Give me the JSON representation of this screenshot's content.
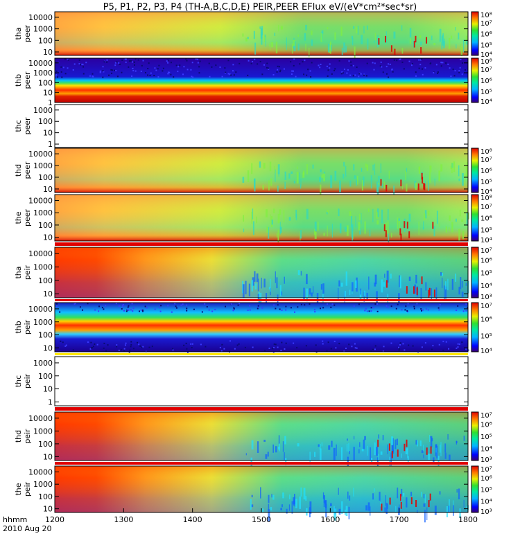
{
  "chart_data": {
    "type": "heatmap",
    "title": "P5, P1, P2, P3, P4 (TH-A,B,C,D,E) PEIR,PEER EFlux eV/(eV*cm²*sec*sr)",
    "x_axis": {
      "label_top": "hhmm",
      "label_bottom": "2010 Aug 20",
      "ticks": [
        "1200",
        "1300",
        "1400",
        "1500",
        "1600",
        "1700",
        "1800"
      ],
      "range": [
        "1200",
        "1800"
      ]
    },
    "panels": [
      {
        "probe": "tha",
        "kind": "peer",
        "yticks": [
          "10",
          "100",
          "1000",
          "10000"
        ],
        "ylim": [
          5,
          30000
        ],
        "yscale": "log",
        "data": true,
        "colorbar": {
          "ticks": [
            "10⁴",
            "10⁵",
            "10⁶",
            "10⁷",
            "10⁸"
          ],
          "range": [
            10000,
            100000000
          ]
        },
        "description_values": {
          "dominant_low_energy_level": "10⁷–10⁸",
          "background_level": "10⁶"
        }
      },
      {
        "probe": "thb",
        "kind": "peer",
        "yticks": [
          "1",
          "10",
          "100",
          "1000",
          "10000"
        ],
        "ylim": [
          1,
          30000
        ],
        "yscale": "log",
        "data": true,
        "colorbar": {
          "ticks": [
            "10⁴",
            "10⁵",
            "10⁶",
            "10⁷",
            "10⁸"
          ],
          "range": [
            10000,
            100000000
          ]
        }
      },
      {
        "probe": "thc",
        "kind": "peer",
        "yticks": [
          "1",
          "10",
          "100",
          "1000"
        ],
        "ylim": [
          0.5,
          3000
        ],
        "yscale": "log",
        "data": false
      },
      {
        "probe": "thd",
        "kind": "peer",
        "yticks": [
          "10",
          "100",
          "1000",
          "10000"
        ],
        "ylim": [
          5,
          30000
        ],
        "yscale": "log",
        "data": true,
        "colorbar": {
          "ticks": [
            "10⁴",
            "10⁵",
            "10⁶",
            "10⁷",
            "10⁸"
          ],
          "range": [
            10000,
            100000000
          ]
        }
      },
      {
        "probe": "the",
        "kind": "peer",
        "yticks": [
          "10",
          "100",
          "1000",
          "10000"
        ],
        "ylim": [
          5,
          30000
        ],
        "yscale": "log",
        "data": true,
        "colorbar": {
          "ticks": [
            "10⁴",
            "10⁵",
            "10⁶",
            "10⁷",
            "10⁸"
          ],
          "range": [
            10000,
            100000000
          ]
        }
      },
      {
        "probe": "tha",
        "kind": "peir",
        "yticks": [
          "10",
          "100",
          "1000",
          "10000"
        ],
        "ylim": [
          5,
          30000
        ],
        "yscale": "log",
        "data": true,
        "colorbar": {
          "ticks": [
            "10³",
            "10⁴",
            "10⁵",
            "10⁶",
            "10⁷"
          ],
          "range": [
            1000,
            10000000
          ]
        }
      },
      {
        "probe": "thb",
        "kind": "peir",
        "yticks": [
          "10",
          "100",
          "1000",
          "10000"
        ],
        "ylim": [
          5,
          30000
        ],
        "yscale": "log",
        "data": true,
        "colorbar": {
          "ticks": [
            "10⁴",
            "10⁵",
            "10⁶",
            "10⁷"
          ],
          "range": [
            10000,
            10000000
          ]
        }
      },
      {
        "probe": "thc",
        "kind": "peir",
        "yticks": [
          "1",
          "10",
          "100",
          "1000"
        ],
        "ylim": [
          0.5,
          3000
        ],
        "yscale": "log",
        "data": false
      },
      {
        "probe": "thd",
        "kind": "peir",
        "yticks": [
          "10",
          "100",
          "1000",
          "10000"
        ],
        "ylim": [
          5,
          30000
        ],
        "yscale": "log",
        "data": true,
        "colorbar": {
          "ticks": [
            "10³",
            "10⁴",
            "10⁵",
            "10⁶",
            "10⁷"
          ],
          "range": [
            1000,
            10000000
          ]
        }
      },
      {
        "probe": "the",
        "kind": "peir",
        "yticks": [
          "10",
          "100",
          "1000",
          "10000"
        ],
        "ylim": [
          5,
          30000
        ],
        "yscale": "log",
        "data": true,
        "colorbar": {
          "ticks": [
            "10³",
            "10⁴",
            "10⁵",
            "10⁶",
            "10⁷"
          ],
          "range": [
            1000,
            10000000
          ]
        }
      }
    ]
  }
}
